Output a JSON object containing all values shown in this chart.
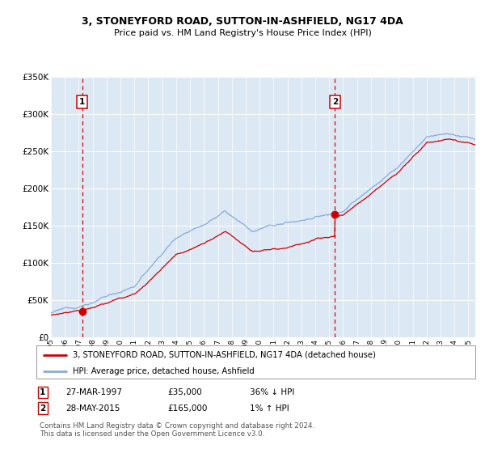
{
  "title": "3, STONEYFORD ROAD, SUTTON-IN-ASHFIELD, NG17 4DA",
  "subtitle": "Price paid vs. HM Land Registry's House Price Index (HPI)",
  "sale1_date": 1997.24,
  "sale1_price": 35000,
  "sale1_label": "1",
  "sale1_text": "27-MAR-1997",
  "sale1_amount": "£35,000",
  "sale1_hpi": "36% ↓ HPI",
  "sale2_date": 2015.41,
  "sale2_price": 165000,
  "sale2_label": "2",
  "sale2_text": "28-MAY-2015",
  "sale2_amount": "£165,000",
  "sale2_hpi": "1% ↑ HPI",
  "legend_property": "3, STONEYFORD ROAD, SUTTON-IN-ASHFIELD, NG17 4DA (detached house)",
  "legend_hpi": "HPI: Average price, detached house, Ashfield",
  "footer": "Contains HM Land Registry data © Crown copyright and database right 2024.\nThis data is licensed under the Open Government Licence v3.0.",
  "ylim": [
    0,
    350000
  ],
  "xlim": [
    1995,
    2025.5
  ],
  "property_line_color": "#cc0000",
  "hpi_line_color": "#88aadd",
  "vline_color": "#dd0000",
  "bg_color": "#dde8f5",
  "grid_color": "#ffffff",
  "sale_marker_color": "#cc0000",
  "box_color": "#cc0000"
}
